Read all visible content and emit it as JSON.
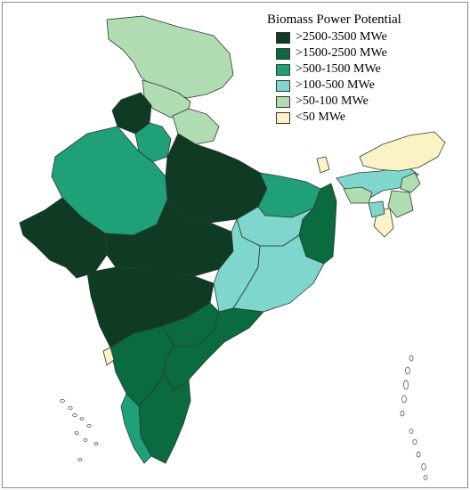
{
  "map": {
    "legend": {
      "title": "Biomass Power Potential",
      "items": [
        {
          "key": "c1",
          "label": ">2500-3500 MWe",
          "color": "#0f3a24"
        },
        {
          "key": "c2",
          "label": ">1500-2500 MWe",
          "color": "#0a6b40"
        },
        {
          "key": "c3",
          "label": ">500-1500 MWe",
          "color": "#1fa079"
        },
        {
          "key": "c4",
          "label": ">100-500 MWe",
          "color": "#7fd6cc"
        },
        {
          "key": "c5",
          "label": ">50-100 MWe",
          "color": "#b1dcb2"
        },
        {
          "key": "c6",
          "label": "<50 MWe",
          "color": "#fbf3c6"
        }
      ]
    },
    "regions": [
      {
        "name": "jammu-kashmir",
        "cls": "c5"
      },
      {
        "name": "himachal-pradesh",
        "cls": "c5"
      },
      {
        "name": "uttarakhand",
        "cls": "c5"
      },
      {
        "name": "punjab",
        "cls": "c1"
      },
      {
        "name": "haryana",
        "cls": "c3"
      },
      {
        "name": "rajasthan",
        "cls": "c3"
      },
      {
        "name": "uttar-pradesh",
        "cls": "c1"
      },
      {
        "name": "gujarat",
        "cls": "c1"
      },
      {
        "name": "madhya-pradesh",
        "cls": "c1"
      },
      {
        "name": "maharashtra",
        "cls": "c1"
      },
      {
        "name": "bihar",
        "cls": "c3"
      },
      {
        "name": "west-bengal",
        "cls": "c2"
      },
      {
        "name": "jharkhand",
        "cls": "c4"
      },
      {
        "name": "chhattisgarh",
        "cls": "c4"
      },
      {
        "name": "odisha",
        "cls": "c4"
      },
      {
        "name": "telangana",
        "cls": "c2"
      },
      {
        "name": "andhra-pradesh",
        "cls": "c2"
      },
      {
        "name": "karnataka",
        "cls": "c2"
      },
      {
        "name": "goa",
        "cls": "c6"
      },
      {
        "name": "tamil-nadu",
        "cls": "c2"
      },
      {
        "name": "kerala",
        "cls": "c3"
      },
      {
        "name": "sikkim",
        "cls": "c6"
      },
      {
        "name": "assam",
        "cls": "c4"
      },
      {
        "name": "arunachal-pradesh",
        "cls": "c6"
      },
      {
        "name": "meghalaya",
        "cls": "c5"
      },
      {
        "name": "nagaland",
        "cls": "c5"
      },
      {
        "name": "manipur",
        "cls": "c5"
      },
      {
        "name": "mizoram",
        "cls": "c6"
      },
      {
        "name": "tripura",
        "cls": "c4"
      }
    ]
  }
}
